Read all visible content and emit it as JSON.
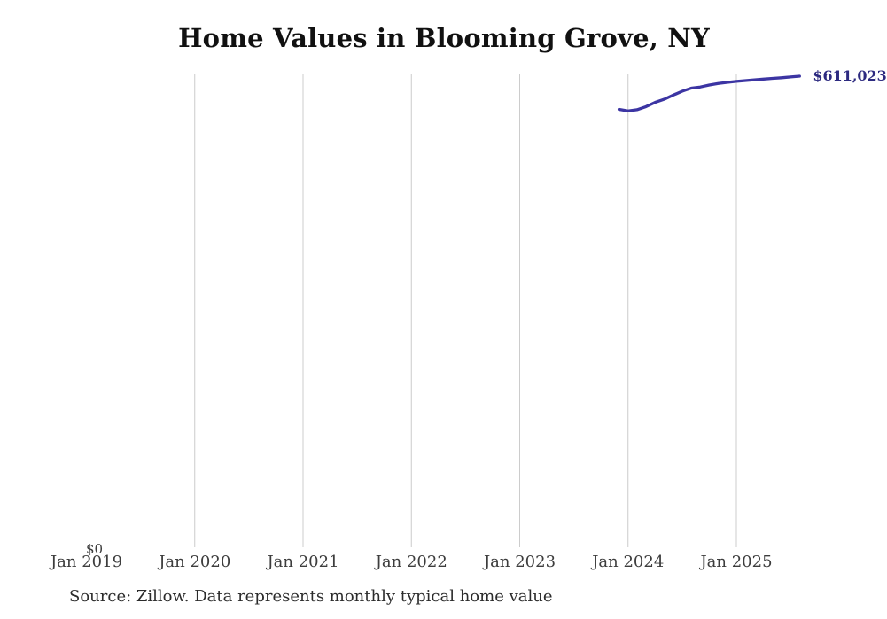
{
  "chart": {
    "title": "Home Values in Blooming Grove, NY",
    "source_note": "Source: Zillow. Data represents monthly typical home value",
    "end_label": "$611,023",
    "y_axis": {
      "zero_label": "$0"
    },
    "x_axis": {
      "tick_labels": [
        "Jan 2019",
        "Jan 2020",
        "Jan 2021",
        "Jan 2022",
        "Jan 2023",
        "Jan 2024",
        "Jan 2025"
      ]
    },
    "colors": {
      "line": "#3c35a3",
      "end_label": "#2d2a80",
      "gridline": "#cccccc",
      "title": "#111111",
      "axis_text": "#3d3d3d",
      "source_text": "#2b2b2b"
    }
  },
  "chart_data": {
    "type": "line",
    "title": "Home Values in Blooming Grove, NY",
    "xlabel": "",
    "ylabel": "",
    "x": [
      "Dec 2023",
      "Jan 2024",
      "Feb 2024",
      "Mar 2024",
      "Apr 2024",
      "May 2024",
      "Jun 2024",
      "Jul 2024",
      "Aug 2024",
      "Sep 2024",
      "Oct 2024",
      "Nov 2024",
      "Dec 2024",
      "Jan 2025",
      "Feb 2025",
      "Mar 2025",
      "Apr 2025",
      "May 2025",
      "Jun 2025",
      "Jul 2025",
      "Aug 2025"
    ],
    "series": [
      {
        "name": "Monthly typical home value",
        "values": [
          568000,
          566000,
          567500,
          571500,
          577000,
          581000,
          586500,
          591500,
          595500,
          597000,
          599500,
          601500,
          603000,
          604200,
          605300,
          606300,
          607200,
          608100,
          609000,
          610000,
          611023
        ]
      }
    ],
    "x_axis_range": [
      "Jan 2019",
      "Mar 2026"
    ],
    "x_ticks": [
      "Jan 2019",
      "Jan 2020",
      "Jan 2021",
      "Jan 2022",
      "Jan 2023",
      "Jan 2024",
      "Jan 2025"
    ],
    "ylim": [
      0,
      613000
    ],
    "y_ticks_shown": [
      "$0"
    ],
    "grid": "vertical yearly gridlines (Jan 2020 - Jan 2025 only)",
    "legend": false,
    "end_annotation": "$611,023"
  }
}
